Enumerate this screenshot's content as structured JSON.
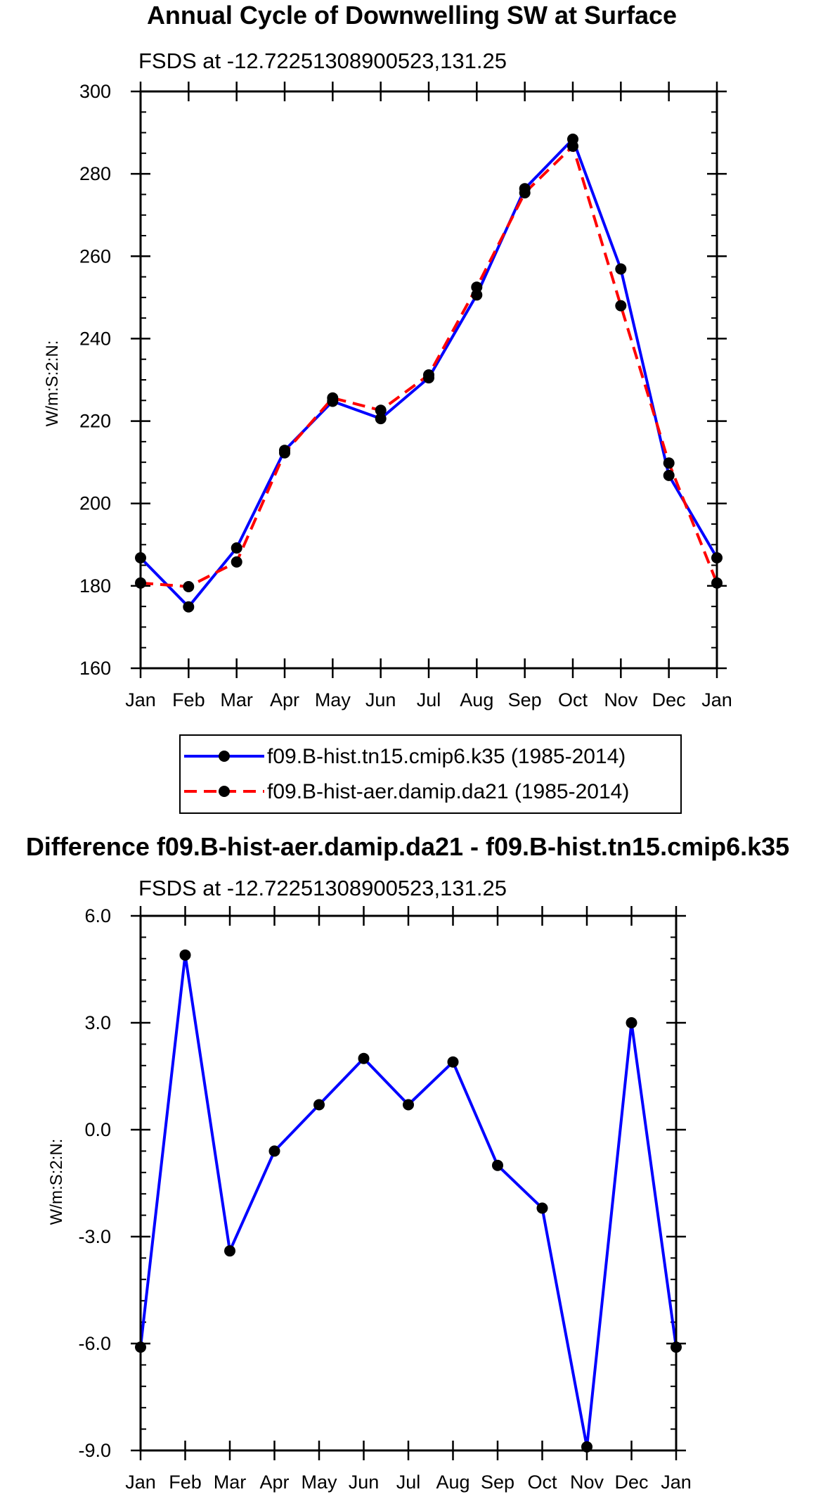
{
  "colors": {
    "series_a": "#0000ff",
    "series_b": "#ff0000",
    "marker": "#000000",
    "axis": "#000000",
    "background": "#ffffff"
  },
  "chart_data": [
    {
      "type": "line",
      "title": "Annual Cycle of Downwelling SW at Surface",
      "subtitle": "FSDS at -12.72251308900523,131.25",
      "xlabel": "",
      "ylabel": "W/m:S:2:N:",
      "categories": [
        "Jan",
        "Feb",
        "Mar",
        "Apr",
        "May",
        "Jun",
        "Jul",
        "Aug",
        "Sep",
        "Oct",
        "Nov",
        "Dec",
        "Jan"
      ],
      "ylim": [
        160,
        300
      ],
      "yticks": [
        "160",
        "180",
        "200",
        "220",
        "240",
        "260",
        "280",
        "300"
      ],
      "ytick_values": [
        160,
        180,
        200,
        220,
        240,
        260,
        280,
        300
      ],
      "minor_step": 5,
      "grid": false,
      "legend_position": "bottom-center",
      "series": [
        {
          "name": "f09.B-hist.tn15.cmip6.k35 (1985-2014)",
          "style": "solid",
          "values": [
            186.8,
            174.9,
            189.2,
            212.9,
            224.8,
            220.6,
            230.5,
            250.6,
            276.4,
            288.4,
            256.9,
            206.8,
            186.8
          ]
        },
        {
          "name": "f09.B-hist-aer.damip.da21 (1985-2014)",
          "style": "dashed",
          "values": [
            180.7,
            179.8,
            185.8,
            212.3,
            225.6,
            222.6,
            231.2,
            252.5,
            275.4,
            286.7,
            248.0,
            209.8,
            180.7
          ]
        }
      ]
    },
    {
      "type": "line",
      "title": "Difference f09.B-hist-aer.damip.da21 - f09.B-hist.tn15.cmip6.k35",
      "subtitle": "FSDS at -12.72251308900523,131.25",
      "xlabel": "",
      "ylabel": "W/m:S:2:N:",
      "categories": [
        "Jan",
        "Feb",
        "Mar",
        "Apr",
        "May",
        "Jun",
        "Jul",
        "Aug",
        "Sep",
        "Oct",
        "Nov",
        "Dec",
        "Jan"
      ],
      "ylim": [
        -9,
        6
      ],
      "yticks": [
        "-9.0",
        "-6.0",
        "-3.0",
        "0.0",
        "3.0",
        "6.0"
      ],
      "ytick_values": [
        -9,
        -6,
        -3,
        0,
        3,
        6
      ],
      "minor_step": 0.6,
      "grid": false,
      "series": [
        {
          "name": "Difference",
          "style": "solid",
          "values": [
            -6.1,
            4.9,
            -3.4,
            -0.6,
            0.7,
            2.0,
            0.7,
            1.9,
            -1.0,
            -2.2,
            -8.9,
            3.0,
            -6.1
          ]
        }
      ]
    }
  ]
}
